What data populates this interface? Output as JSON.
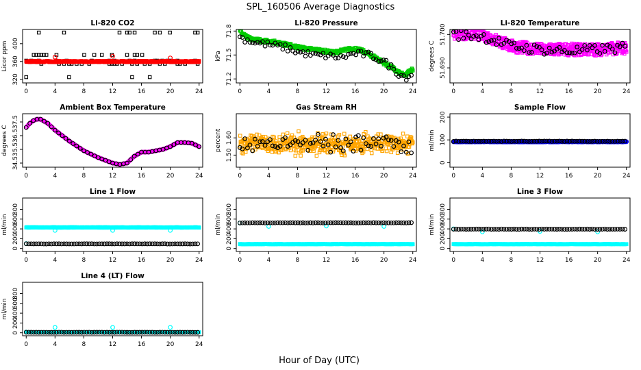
{
  "title": "SPL_160506  Average Diagnostics",
  "xlabel": "Hour of Day (UTC)",
  "x_ticks": [
    0,
    4,
    8,
    12,
    16,
    20,
    24
  ],
  "colors": {
    "red": "#ff0000",
    "black": "#000000",
    "green": "#00cc00",
    "magenta": "#ff00ff",
    "orange": "#ffa500",
    "blue": "#0000ff",
    "cyan": "#00ffff"
  },
  "chart_data": [
    {
      "type": "scatter",
      "title": "Li-820 CO2",
      "ylabel": "Licor ppm",
      "ylim": [
        312,
        432
      ],
      "y_ticks": [
        "320",
        "360",
        "400"
      ],
      "xlim": [
        -0.5,
        24.5
      ],
      "series": [
        {
          "marker": "square",
          "color": "black",
          "pattern": "levels",
          "levels": [
            [
              325,
              0.12
            ],
            [
              355,
              0.26
            ],
            [
              362,
              0.3
            ],
            [
              375,
              0.17
            ],
            [
              425,
              0.15
            ]
          ]
        },
        {
          "marker": "square",
          "color": "red",
          "pattern": "dense",
          "base": 360,
          "noise": 1.5,
          "step": 0.05
        },
        {
          "marker": "circle",
          "color": "red",
          "pattern": "points",
          "x": [
            4,
            12,
            20
          ],
          "y": [
            370,
            372,
            368
          ]
        }
      ]
    },
    {
      "type": "scatter",
      "title": "Li-820 Pressure",
      "ylabel": "kPa",
      "ylim": [
        71.15,
        71.82
      ],
      "y_ticks": [
        "71.2",
        "71.5",
        "71.8"
      ],
      "xlim": [
        -0.5,
        24.5
      ],
      "series": [
        {
          "marker": "square",
          "color": "green",
          "pattern": "curve",
          "step": 0.06,
          "noise": 0.02,
          "x": [
            0,
            1,
            3,
            5,
            7,
            9,
            11,
            13,
            15,
            16,
            17,
            19,
            20,
            21,
            22,
            23,
            23.5,
            24
          ],
          "y": [
            71.8,
            71.72,
            71.68,
            71.66,
            71.62,
            71.58,
            71.56,
            71.53,
            71.57,
            71.58,
            71.55,
            71.46,
            71.4,
            71.35,
            71.28,
            71.24,
            71.3,
            71.32
          ]
        },
        {
          "marker": "circle",
          "color": "black",
          "pattern": "curve",
          "step": 0.35,
          "noise": 0.04,
          "x": [
            0,
            2,
            4,
            6,
            8,
            10,
            12,
            14,
            16,
            18,
            20,
            21,
            22,
            23,
            24
          ],
          "y": [
            71.72,
            71.66,
            71.63,
            71.6,
            71.54,
            71.5,
            71.49,
            71.47,
            71.52,
            71.5,
            71.42,
            71.35,
            71.27,
            71.22,
            71.26
          ]
        }
      ]
    },
    {
      "type": "scatter",
      "title": "Li-820 Temperature",
      "ylabel": "degrees C",
      "ylim": [
        51.6855,
        51.7015
      ],
      "y_ticks": [
        "51.690",
        "51.700"
      ],
      "xlim": [
        -0.5,
        24.5
      ],
      "series": [
        {
          "marker": "square",
          "color": "magenta",
          "pattern": "curve",
          "step": 0.04,
          "noise": 0.0018,
          "x": [
            0,
            4,
            8,
            12,
            16,
            20,
            24
          ],
          "y": [
            51.7005,
            51.7,
            51.6965,
            51.6955,
            51.6955,
            51.6955,
            51.696
          ]
        },
        {
          "marker": "circle",
          "color": "black",
          "pattern": "curve",
          "step": 0.35,
          "noise": 0.0015,
          "x": [
            0,
            4,
            8,
            12,
            16,
            20,
            24
          ],
          "y": [
            51.7,
            51.6995,
            51.6965,
            51.6955,
            51.695,
            51.6955,
            51.696
          ]
        }
      ]
    },
    {
      "type": "scatter",
      "title": "Ambient Box Temperature",
      "ylabel": "degrees C",
      "ylim": [
        34.2,
        38.1
      ],
      "y_ticks": [
        "34.5",
        "35.5",
        "36.5",
        "37.5"
      ],
      "xlim": [
        -0.5,
        24.5
      ],
      "series": [
        {
          "marker": "circle",
          "color": "magenta",
          "pattern": "curve",
          "step": 0.12,
          "noise": 0.0,
          "x": [
            0,
            0.5,
            1,
            1.5,
            2,
            3,
            4,
            6,
            8,
            10,
            12,
            13,
            14,
            15,
            16,
            17,
            18,
            19,
            20,
            21,
            22,
            23,
            24
          ],
          "y": [
            37.1,
            37.4,
            37.6,
            37.7,
            37.7,
            37.4,
            36.9,
            36.1,
            35.4,
            34.9,
            34.5,
            34.4,
            34.5,
            35.0,
            35.3,
            35.3,
            35.4,
            35.5,
            35.7,
            36.0,
            36.0,
            35.95,
            35.7
          ]
        },
        {
          "marker": "circle",
          "color": "black",
          "pattern": "curve",
          "step": 0.5,
          "noise": 0.0,
          "x": [
            0,
            0.5,
            1,
            1.5,
            2,
            3,
            4,
            6,
            8,
            10,
            12,
            13,
            14,
            15,
            16,
            17,
            18,
            19,
            20,
            21,
            22,
            23,
            24
          ],
          "y": [
            37.1,
            37.4,
            37.6,
            37.7,
            37.7,
            37.4,
            36.9,
            36.1,
            35.4,
            34.9,
            34.5,
            34.4,
            34.5,
            35.0,
            35.3,
            35.3,
            35.4,
            35.5,
            35.7,
            36.0,
            36.0,
            35.95,
            35.7
          ]
        }
      ]
    },
    {
      "type": "scatter",
      "title": "Gas Stream RH",
      "ylabel": "percent",
      "ylim": [
        1.43,
        1.74
      ],
      "y_ticks": [
        "1.50",
        "1.60"
      ],
      "xlim": [
        -0.5,
        24.5
      ],
      "series": [
        {
          "marker": "square",
          "color": "orange",
          "pattern": "band",
          "step": 0.05,
          "center": 1.565,
          "spread": 0.05
        },
        {
          "marker": "circle",
          "color": "black",
          "pattern": "band",
          "step": 0.35,
          "center": 1.57,
          "spread": 0.045
        }
      ]
    },
    {
      "type": "scatter",
      "title": "Sample Flow",
      "ylabel": "ml/min",
      "ylim": [
        -20,
        215
      ],
      "y_ticks": [
        "0",
        "100",
        "200"
      ],
      "xlim": [
        -0.5,
        24.5
      ],
      "series": [
        {
          "marker": "circle",
          "color": "blue",
          "pattern": "dense",
          "base": 92,
          "noise": 1,
          "step": 0.05
        },
        {
          "marker": "circle",
          "color": "black",
          "pattern": "dense",
          "base": 94,
          "noise": 1,
          "step": 0.35
        }
      ]
    },
    {
      "type": "scatter",
      "title": "Line 1 Flow",
      "ylabel": "ml/min",
      "ylim": [
        -60,
        1030
      ],
      "y_ticks": [
        "0",
        "200",
        "400",
        "600",
        "800"
      ],
      "xlim": [
        -0.5,
        24.5
      ],
      "series": [
        {
          "marker": "square",
          "color": "cyan",
          "pattern": "dense",
          "base": 430,
          "noise": 6,
          "step": 0.05
        },
        {
          "marker": "circle",
          "color": "cyan",
          "pattern": "points",
          "x": [
            0,
            4,
            12,
            20
          ],
          "y": [
            100,
            370,
            370,
            370
          ]
        },
        {
          "marker": "circle",
          "color": "black",
          "pattern": "dense",
          "base": 95,
          "noise": 2,
          "step": 0.35
        }
      ]
    },
    {
      "type": "scatter",
      "title": "Line 2 Flow",
      "ylabel": "ml/min",
      "ylim": [
        -60,
        1030
      ],
      "y_ticks": [
        "0",
        "200",
        "400",
        "600",
        "800"
      ],
      "xlim": [
        -0.5,
        24.5
      ],
      "series": [
        {
          "marker": "square",
          "color": "cyan",
          "pattern": "dense",
          "base": 90,
          "noise": 3,
          "step": 0.05
        },
        {
          "marker": "circle",
          "color": "cyan",
          "pattern": "points",
          "x": [
            0,
            4,
            12,
            20
          ],
          "y": [
            520,
            450,
            460,
            450
          ]
        },
        {
          "marker": "circle",
          "color": "black",
          "pattern": "dense",
          "base": 525,
          "noise": 3,
          "step": 0.35
        }
      ]
    },
    {
      "type": "scatter",
      "title": "Line 3 Flow",
      "ylabel": "ml/min",
      "ylim": [
        -60,
        1030
      ],
      "y_ticks": [
        "0",
        "200",
        "400",
        "600",
        "800"
      ],
      "xlim": [
        -0.5,
        24.5
      ],
      "series": [
        {
          "marker": "square",
          "color": "cyan",
          "pattern": "dense",
          "base": 90,
          "noise": 3,
          "step": 0.05
        },
        {
          "marker": "circle",
          "color": "cyan",
          "pattern": "points",
          "x": [
            0,
            4,
            12,
            20
          ],
          "y": [
            400,
            340,
            350,
            340
          ]
        },
        {
          "marker": "circle",
          "color": "black",
          "pattern": "dense",
          "base": 395,
          "noise": 3,
          "step": 0.35
        }
      ]
    },
    {
      "type": "scatter",
      "title": "Line 4 (LT) Flow",
      "ylabel": "ml/min",
      "ylim": [
        -60,
        1030
      ],
      "y_ticks": [
        "0",
        "200",
        "400",
        "600",
        "800"
      ],
      "xlim": [
        -0.5,
        24.5
      ],
      "series": [
        {
          "marker": "square",
          "color": "cyan",
          "pattern": "dense",
          "base": 10,
          "noise": 2,
          "step": 0.05
        },
        {
          "marker": "circle",
          "color": "cyan",
          "pattern": "points",
          "x": [
            0,
            4,
            12,
            20
          ],
          "y": [
            15,
            110,
            110,
            110
          ]
        },
        {
          "marker": "circle",
          "color": "black",
          "pattern": "dense",
          "base": 10,
          "noise": 2,
          "step": 0.35
        }
      ]
    }
  ]
}
